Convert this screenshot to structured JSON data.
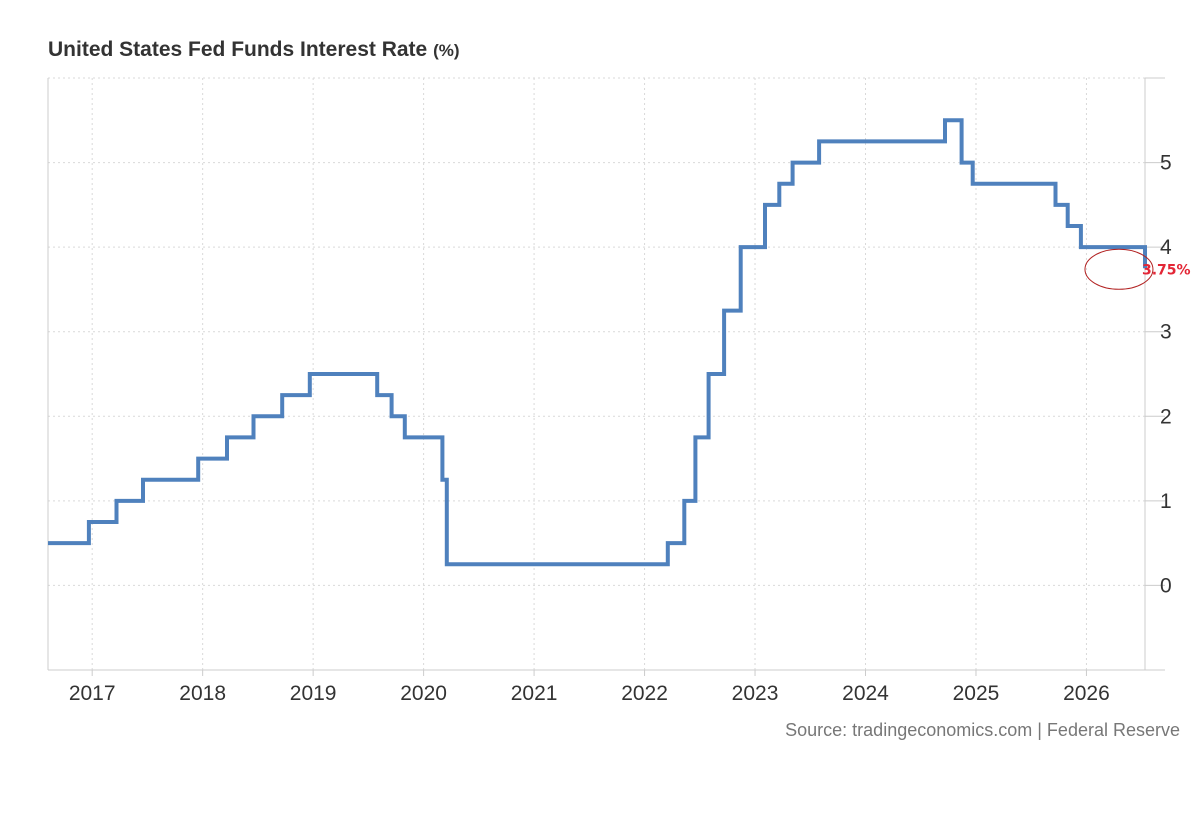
{
  "chart_data": {
    "type": "line",
    "step": true,
    "title": "United States Fed Funds Interest Rate",
    "title_unit": "(%)",
    "source": "Source: tradingeconomics.com | Federal Reserve",
    "xlim": [
      2016.6,
      2026.53
    ],
    "ylim": [
      -1,
      6
    ],
    "x_ticks": [
      2017,
      2018,
      2019,
      2020,
      2021,
      2022,
      2023,
      2024,
      2025,
      2026
    ],
    "y_ticks": [
      0,
      1,
      2,
      3,
      4,
      5
    ],
    "grid": true,
    "line_color": "#4f81bd",
    "last_value_color": "#e32636",
    "last_value_label": "3.75%",
    "series": [
      {
        "x": [
          2016.6,
          2016.97,
          2017.22,
          2017.46,
          2017.96,
          2018.22,
          2018.46,
          2018.72,
          2018.97,
          2019.58,
          2019.71,
          2019.83,
          2020.17,
          2020.21,
          2022.21,
          2022.36,
          2022.46,
          2022.58,
          2022.72,
          2022.87,
          2023.09,
          2023.22,
          2023.34,
          2023.58,
          2024.72,
          2024.87,
          2024.97,
          2025.72,
          2025.83,
          2025.95,
          2026.53
        ],
        "y": [
          0.5,
          0.75,
          1.0,
          1.25,
          1.5,
          1.75,
          2.0,
          2.25,
          2.5,
          2.25,
          2.0,
          1.75,
          1.25,
          0.25,
          0.5,
          1.0,
          1.75,
          2.5,
          3.25,
          4.0,
          4.5,
          4.75,
          5.0,
          5.25,
          5.5,
          5.0,
          4.75,
          4.5,
          4.25,
          4.0,
          3.75
        ]
      }
    ]
  }
}
